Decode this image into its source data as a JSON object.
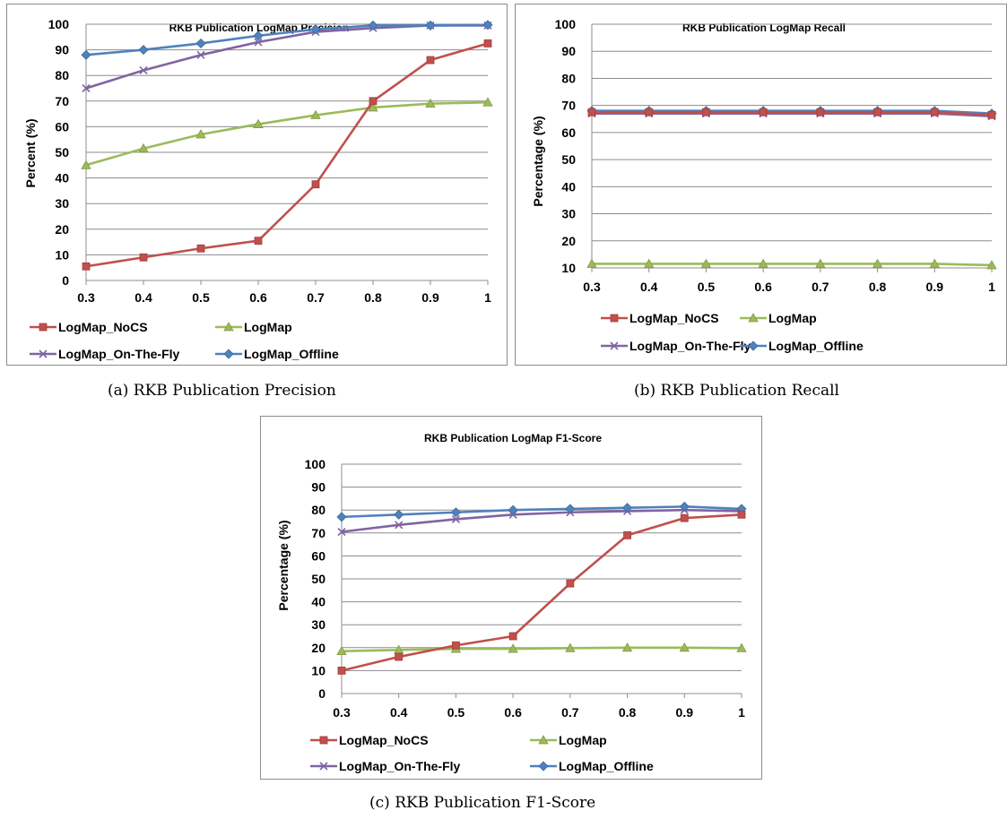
{
  "chart_data": [
    {
      "type": "line",
      "title": "RKB Publication LogMap Precision",
      "xlabel": "",
      "ylabel": "Percent (%)",
      "caption": "(a) RKB Publication Precision",
      "categories": [
        "0.3",
        "0.4",
        "0.5",
        "0.6",
        "0.7",
        "0.8",
        "0.9",
        "1"
      ],
      "ylim": [
        0,
        100
      ],
      "yticks": [
        "0",
        "10",
        "20",
        "30",
        "40",
        "50",
        "60",
        "70",
        "80",
        "90",
        "100"
      ],
      "grid": "horizontal",
      "legend_position": "bottom",
      "series": [
        {
          "name": "LogMap_NoCS",
          "color": "#c0504d",
          "marker": "square",
          "values": [
            5.5,
            9,
            12.5,
            15.5,
            37.5,
            70,
            86,
            92.5
          ]
        },
        {
          "name": "LogMap",
          "color": "#9bbb59",
          "marker": "triangle",
          "values": [
            45,
            51.5,
            57,
            61,
            64.5,
            67.5,
            69,
            69.5
          ]
        },
        {
          "name": "LogMap_On-The-Fly",
          "color": "#8064a2",
          "marker": "x",
          "values": [
            75,
            82,
            88,
            93,
            97,
            98.5,
            99.5,
            99.5
          ]
        },
        {
          "name": "LogMap_Offline",
          "color": "#4f81bd",
          "marker": "diamond",
          "values": [
            88,
            90,
            92.5,
            95.5,
            98,
            99.5,
            99.5,
            99.7
          ]
        }
      ]
    },
    {
      "type": "line",
      "title": "RKB Publication LogMap Recall",
      "xlabel": "",
      "ylabel": "Percentage (%)",
      "caption": "(b) RKB Publication Recall",
      "categories": [
        "0.3",
        "0.4",
        "0.5",
        "0.6",
        "0.7",
        "0.8",
        "0.9",
        "1"
      ],
      "ylim": [
        10,
        100
      ],
      "yticks": [
        "10",
        "20",
        "30",
        "40",
        "50",
        "60",
        "70",
        "80",
        "90",
        "100"
      ],
      "grid": "horizontal",
      "legend_position": "bottom",
      "series": [
        {
          "name": "LogMap_NoCS",
          "color": "#c0504d",
          "marker": "square",
          "values": [
            67.5,
            67.5,
            67.5,
            67.5,
            67.5,
            67.5,
            67.5,
            66.5
          ]
        },
        {
          "name": "LogMap",
          "color": "#9bbb59",
          "marker": "triangle",
          "values": [
            11.5,
            11.5,
            11.5,
            11.5,
            11.5,
            11.5,
            11.5,
            11
          ]
        },
        {
          "name": "LogMap_On-The-Fly",
          "color": "#8064a2",
          "marker": "x",
          "values": [
            67,
            67,
            67,
            67,
            67,
            67,
            67,
            66
          ]
        },
        {
          "name": "LogMap_Offline",
          "color": "#4f81bd",
          "marker": "diamond",
          "values": [
            68,
            68,
            68,
            68,
            68,
            68,
            68,
            67
          ]
        }
      ]
    },
    {
      "type": "line",
      "title": "RKB Publication LogMap F1-Score",
      "xlabel": "",
      "ylabel": "Percentage (%)",
      "caption": "(c) RKB Publication F1-Score",
      "categories": [
        "0.3",
        "0.4",
        "0.5",
        "0.6",
        "0.7",
        "0.8",
        "0.9",
        "1"
      ],
      "ylim": [
        0,
        100
      ],
      "yticks": [
        "0",
        "10",
        "20",
        "30",
        "40",
        "50",
        "60",
        "70",
        "80",
        "90",
        "100"
      ],
      "grid": "horizontal",
      "legend_position": "bottom",
      "series": [
        {
          "name": "LogMap_NoCS",
          "color": "#c0504d",
          "marker": "square",
          "values": [
            10,
            16,
            21,
            25,
            48,
            69,
            76.5,
            78
          ]
        },
        {
          "name": "LogMap",
          "color": "#9bbb59",
          "marker": "triangle",
          "values": [
            18.5,
            19,
            19.5,
            19.5,
            19.8,
            20,
            20,
            19.8
          ]
        },
        {
          "name": "LogMap_On-The-Fly",
          "color": "#8064a2",
          "marker": "x",
          "values": [
            70.5,
            73.5,
            76,
            78,
            79,
            79.5,
            80,
            79.5
          ]
        },
        {
          "name": "LogMap_Offline",
          "color": "#4f81bd",
          "marker": "diamond",
          "values": [
            77,
            78,
            79,
            80,
            80.5,
            81,
            81.5,
            80.5
          ]
        }
      ]
    }
  ]
}
